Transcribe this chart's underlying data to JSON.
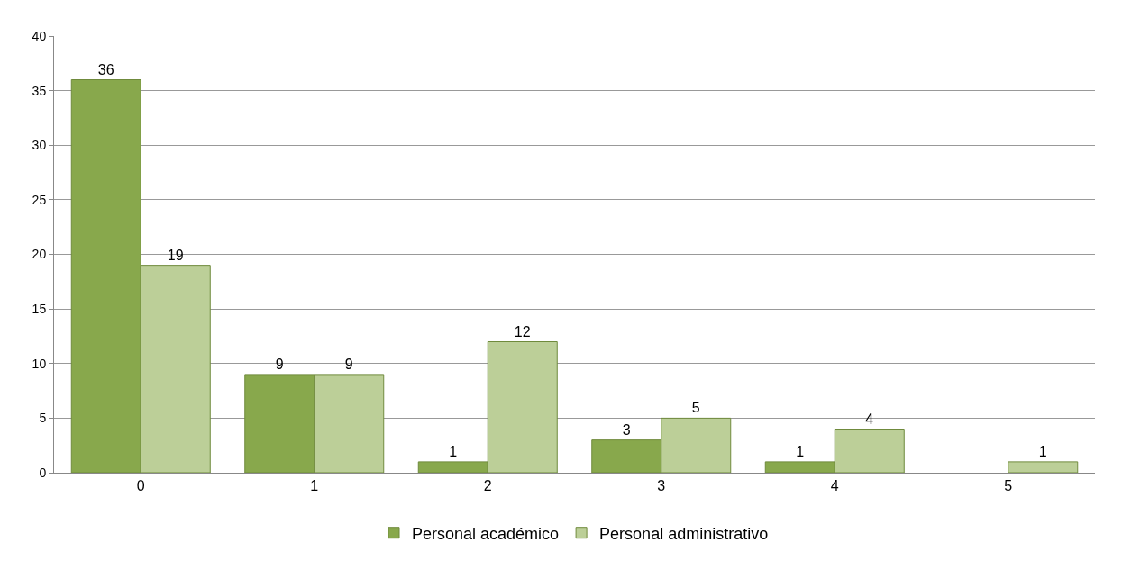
{
  "chart_data": {
    "type": "bar",
    "categories": [
      "0",
      "1",
      "2",
      "3",
      "4",
      "5"
    ],
    "series": [
      {
        "name": "Personal académico",
        "color": "#88a84c",
        "values": [
          36,
          9,
          1,
          3,
          1,
          null
        ]
      },
      {
        "name": "Personal administrativo",
        "color": "#bccf98",
        "values": [
          19,
          9,
          12,
          5,
          4,
          1
        ]
      }
    ],
    "ylim": [
      0,
      40
    ],
    "yticks": [
      0,
      5,
      10,
      15,
      20,
      25,
      30,
      35,
      40
    ],
    "grid": "y",
    "legend": "bottom",
    "data_labels": true
  }
}
